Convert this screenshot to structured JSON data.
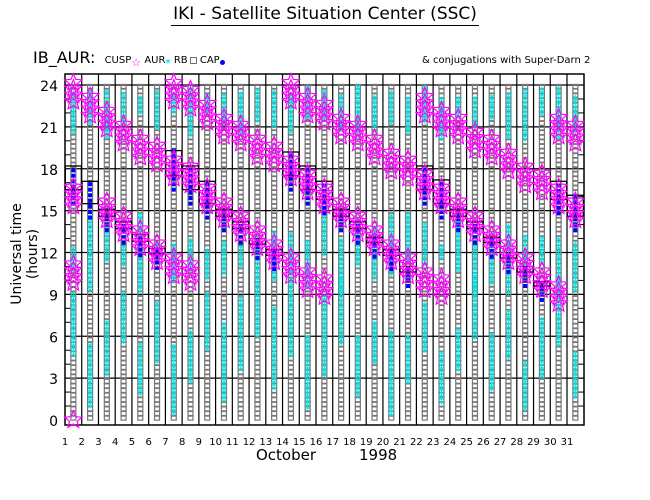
{
  "title": "IKI - Satellite Situation Center (SSC)",
  "header": {
    "satellite": "IB_AUR:",
    "legend": [
      {
        "label": "CUSP",
        "marker": "star-icon",
        "color": "#ff00ff"
      },
      {
        "label": "AUR",
        "marker": "asterisk-icon",
        "color": "#00e5e5"
      },
      {
        "label": "RB",
        "marker": "square-icon",
        "color": "#707070"
      },
      {
        "label": "CAP",
        "marker": "dot-icon",
        "color": "#0000ff"
      }
    ],
    "conjugations": "& conjugations with Super-Darn 2"
  },
  "chart_data": {
    "type": "scatter",
    "title": "IKI - Satellite Situation Center (SSC)",
    "xlabel": "October",
    "xlabel_year": "1998",
    "ylabel": "Universal time (hours)",
    "xlim": [
      1,
      32
    ],
    "ylim": [
      0,
      24
    ],
    "yticks": [
      "0",
      "3",
      "6",
      "9",
      "12",
      "15",
      "18",
      "21",
      "24"
    ],
    "xticks": [
      "1",
      "2",
      "3",
      "4",
      "5",
      "6",
      "7",
      "8",
      "9",
      "10",
      "11",
      "12",
      "13",
      "14",
      "15",
      "16",
      "17",
      "18",
      "19",
      "20",
      "21",
      "22",
      "23",
      "24",
      "25",
      "26",
      "27",
      "28",
      "29",
      "30",
      "31"
    ],
    "grid": true,
    "cusp_ut_centers": [
      {
        "day": 2,
        "ut": [
          23.5,
          16,
          10.5,
          0
        ]
      },
      {
        "day": 3,
        "ut": [
          22.5
        ]
      },
      {
        "day": 4,
        "ut": [
          21.5,
          15
        ]
      },
      {
        "day": 5,
        "ut": [
          20.5,
          14
        ]
      },
      {
        "day": 6,
        "ut": [
          19.5,
          13
        ]
      },
      {
        "day": 7,
        "ut": [
          19,
          12
        ]
      },
      {
        "day": 8,
        "ut": [
          23.5,
          18,
          11
        ]
      },
      {
        "day": 9,
        "ut": [
          23,
          17.5,
          10.5
        ]
      },
      {
        "day": 10,
        "ut": [
          22,
          16
        ]
      },
      {
        "day": 11,
        "ut": [
          21,
          15
        ]
      },
      {
        "day": 12,
        "ut": [
          20.5,
          14
        ]
      },
      {
        "day": 13,
        "ut": [
          19.5,
          13
        ]
      },
      {
        "day": 14,
        "ut": [
          19,
          12
        ]
      },
      {
        "day": 15,
        "ut": [
          23.5,
          18,
          11
        ]
      },
      {
        "day": 16,
        "ut": [
          22.5,
          17,
          10
        ]
      },
      {
        "day": 17,
        "ut": [
          22,
          16,
          9.5
        ]
      },
      {
        "day": 18,
        "ut": [
          21,
          15
        ]
      },
      {
        "day": 19,
        "ut": [
          20.5,
          14
        ]
      },
      {
        "day": 20,
        "ut": [
          19.5,
          13
        ]
      },
      {
        "day": 21,
        "ut": [
          18.5,
          12
        ]
      },
      {
        "day": 22,
        "ut": [
          18,
          11
        ]
      },
      {
        "day": 23,
        "ut": [
          22.5,
          17,
          10
        ]
      },
      {
        "day": 24,
        "ut": [
          21.5,
          16,
          9.5
        ]
      },
      {
        "day": 25,
        "ut": [
          21,
          15
        ]
      },
      {
        "day": 26,
        "ut": [
          20,
          14
        ]
      },
      {
        "day": 27,
        "ut": [
          19.5,
          13
        ]
      },
      {
        "day": 28,
        "ut": [
          18.5,
          12
        ]
      },
      {
        "day": 29,
        "ut": [
          17.5,
          11
        ]
      },
      {
        "day": 30,
        "ut": [
          17,
          10
        ]
      },
      {
        "day": 31,
        "ut": [
          21,
          16,
          9
        ]
      },
      {
        "day": 32,
        "ut": [
          20.5,
          15
        ]
      }
    ],
    "conjugation_boxes": [
      {
        "day": 2,
        "from": 16.5,
        "to": 18.2
      },
      {
        "day": 3,
        "from": 15.5,
        "to": 17.1
      },
      {
        "day": 4,
        "from": 14.6,
        "to": 15.1
      },
      {
        "day": 5,
        "from": 13.7,
        "to": 14.2
      },
      {
        "day": 6,
        "from": 12.8,
        "to": 13.3
      },
      {
        "day": 7,
        "from": 11.9,
        "to": 12.3
      },
      {
        "day": 8,
        "from": 17.5,
        "to": 19.3
      },
      {
        "day": 9,
        "from": 16.5,
        "to": 18.2
      },
      {
        "day": 10,
        "from": 15.5,
        "to": 17.1
      },
      {
        "day": 11,
        "from": 14.6,
        "to": 15.1
      },
      {
        "day": 12,
        "from": 13.7,
        "to": 14.2
      },
      {
        "day": 13,
        "from": 12.6,
        "to": 13.0
      },
      {
        "day": 14,
        "from": 11.8,
        "to": 12.2
      },
      {
        "day": 15,
        "from": 17.5,
        "to": 19.2
      },
      {
        "day": 16,
        "from": 16.5,
        "to": 18.2
      },
      {
        "day": 17,
        "from": 15.8,
        "to": 17.1
      },
      {
        "day": 18,
        "from": 14.6,
        "to": 15.1
      },
      {
        "day": 19,
        "from": 13.7,
        "to": 14.2
      },
      {
        "day": 20,
        "from": 12.7,
        "to": 13.1
      },
      {
        "day": 21,
        "from": 11.8,
        "to": 12.2
      },
      {
        "day": 22,
        "from": 10.6,
        "to": 11.0
      },
      {
        "day": 23,
        "from": 16.5,
        "to": 18.2
      },
      {
        "day": 24,
        "from": 15.5,
        "to": 17.2
      },
      {
        "day": 25,
        "from": 14.6,
        "to": 15.1
      },
      {
        "day": 26,
        "from": 13.7,
        "to": 14.2
      },
      {
        "day": 27,
        "from": 12.7,
        "to": 13.1
      },
      {
        "day": 28,
        "from": 11.6,
        "to": 12.0
      },
      {
        "day": 29,
        "from": 10.6,
        "to": 11.0
      },
      {
        "day": 30,
        "from": 9.6,
        "to": 9.9
      },
      {
        "day": 31,
        "from": 15.8,
        "to": 17.1
      },
      {
        "day": 32,
        "from": 14.6,
        "to": 16.1
      }
    ]
  }
}
